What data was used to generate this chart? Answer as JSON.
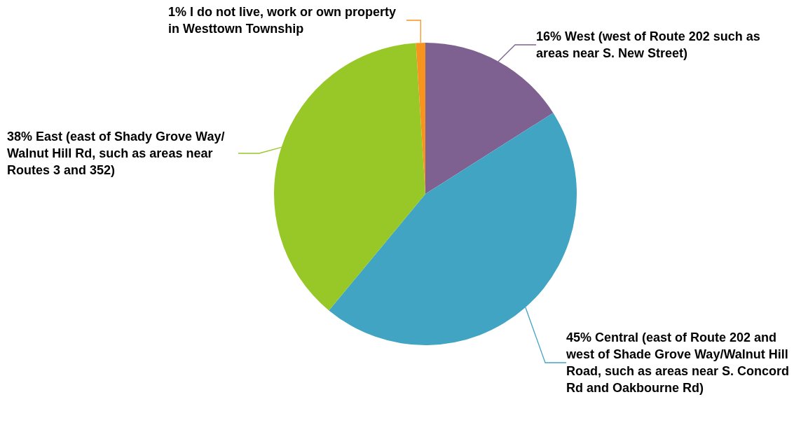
{
  "chart_data": {
    "type": "pie",
    "categories": [
      "West (west of Route 202 such as areas near S. New Street)",
      "Central (east of Route 202 and west of Shade Grove Way/Walnut Hill Road, such as areas near S. Concord Rd and Oakbourne Rd)",
      "East (east of Shady Grove Way/Walnut Hill Rd, such as areas near Routes 3 and 352)",
      "I do not live, work or own property in Westtown Township"
    ],
    "values": [
      16,
      45,
      38,
      1
    ],
    "value_labels": [
      "16%",
      "45%",
      "38%",
      "1%"
    ],
    "colors": [
      "#7e6191",
      "#41a4c3",
      "#97c828",
      "#f7941d"
    ],
    "legend": false
  }
}
